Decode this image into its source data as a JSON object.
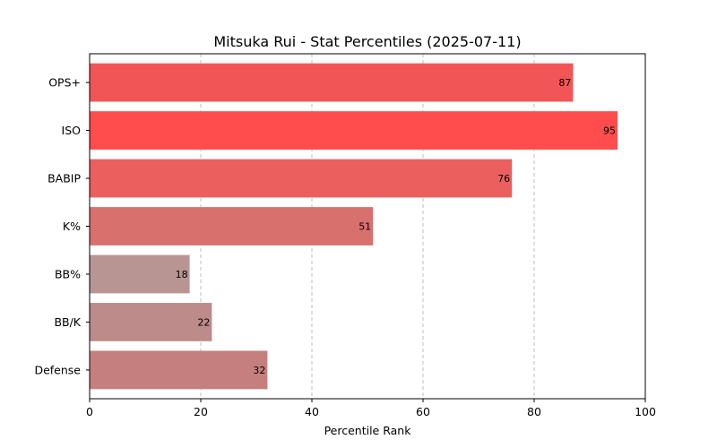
{
  "chart_data": {
    "type": "bar",
    "orientation": "horizontal",
    "title": "Mitsuka Rui - Stat Percentiles (2025-07-11)",
    "xlabel": "Percentile Rank",
    "ylabel": "",
    "xlim": [
      0,
      100
    ],
    "xticks": [
      0,
      20,
      40,
      60,
      80,
      100
    ],
    "grid": "x-dashed",
    "categories": [
      "OPS+",
      "ISO",
      "BABIP",
      "K%",
      "BB%",
      "BB/K",
      "Defense"
    ],
    "values": [
      87,
      95,
      76,
      51,
      18,
      22,
      32
    ],
    "colors": [
      "#f25555",
      "#ff4c4c",
      "#ec5f5f",
      "#d8706e",
      "#b89593",
      "#bc8b8a",
      "#c47f7e"
    ],
    "data_labels": [
      "87",
      "95",
      "76",
      "51",
      "18",
      "22",
      "32"
    ]
  }
}
